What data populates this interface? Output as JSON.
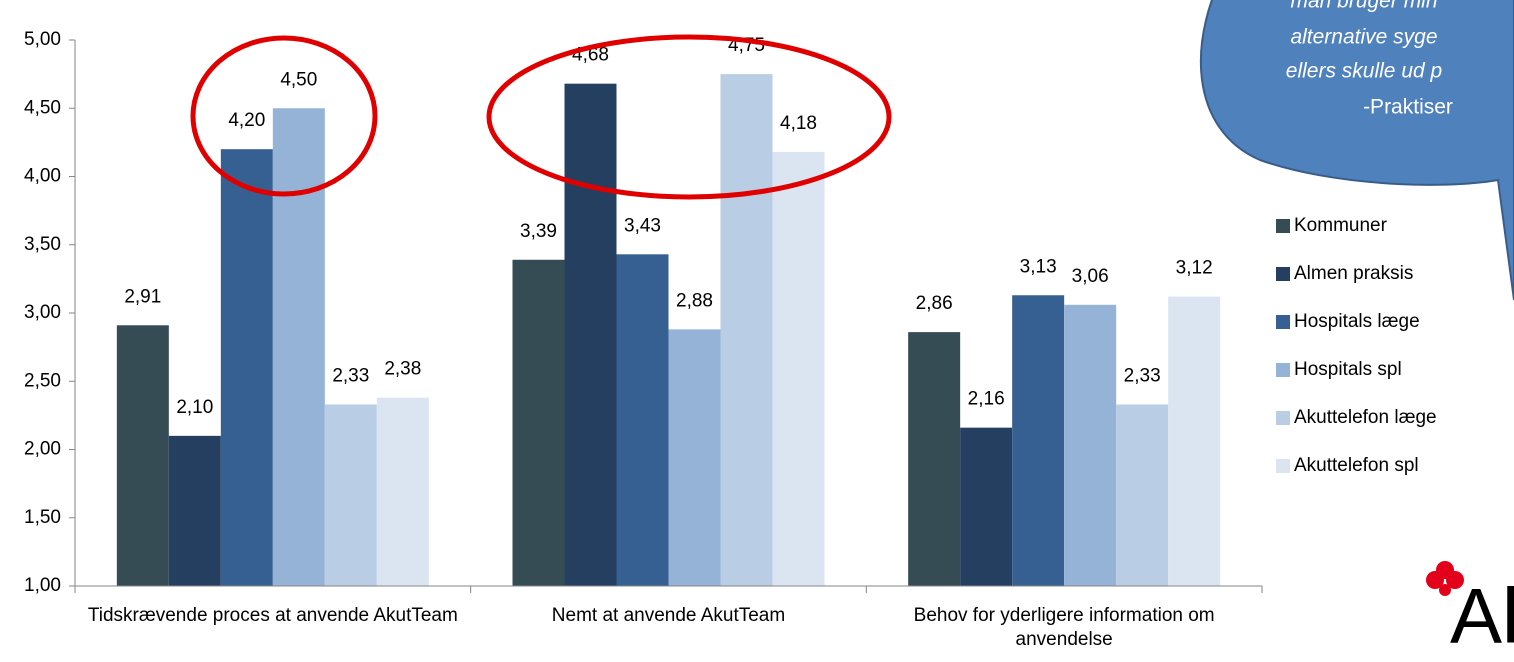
{
  "chart_data": {
    "type": "bar",
    "categories": [
      "Tidskrævende proces at anvende AkutTeam",
      "Nemt at anvende AkutTeam",
      "Behov for yderligere information om anvendelse"
    ],
    "series": [
      {
        "name": "Kommuner",
        "color": "#364c55",
        "values": [
          2.91,
          3.39,
          2.86
        ],
        "value_labels": [
          "2,91",
          "3,39",
          "2,86"
        ]
      },
      {
        "name": "Almen praksis",
        "color": "#243f60",
        "values": [
          2.1,
          4.68,
          2.16
        ],
        "value_labels": [
          "2,10",
          "4,68",
          "2,16"
        ]
      },
      {
        "name": "Hospitals læge",
        "color": "#366092",
        "values": [
          4.2,
          3.43,
          3.13
        ],
        "value_labels": [
          "4,20",
          "3,43",
          "3,13"
        ]
      },
      {
        "name": "Hospitals spl",
        "color": "#95b3d7",
        "values": [
          4.5,
          2.88,
          3.06
        ],
        "value_labels": [
          "4,50",
          "2,88",
          "3,06"
        ]
      },
      {
        "name": "Akuttelefon læge",
        "color": "#b9cde5",
        "values": [
          2.33,
          4.75,
          2.33
        ],
        "value_labels": [
          "2,33",
          "4,75",
          "2,33"
        ]
      },
      {
        "name": "Akuttelefon spl",
        "color": "#dbe5f1",
        "values": [
          2.38,
          4.18,
          3.12
        ],
        "value_labels": [
          "2,38",
          "4,18",
          "3,12"
        ]
      }
    ],
    "ylim": [
      1,
      5
    ],
    "yticks": [
      {
        "value": 1,
        "label": "1,00"
      },
      {
        "value": 1.5,
        "label": "1,50"
      },
      {
        "value": 2,
        "label": "2,00"
      },
      {
        "value": 2.5,
        "label": "2,50"
      },
      {
        "value": 3,
        "label": "3,00"
      },
      {
        "value": 3.5,
        "label": "3,50"
      },
      {
        "value": 4,
        "label": "4,00"
      },
      {
        "value": 4.5,
        "label": "4,50"
      },
      {
        "value": 5,
        "label": "5,00"
      }
    ],
    "legend": "right",
    "annotations": [
      "man bruger min",
      "alternative syge",
      "ellers skulle ud p",
      "-Praktiser"
    ],
    "logo": "Ak"
  }
}
